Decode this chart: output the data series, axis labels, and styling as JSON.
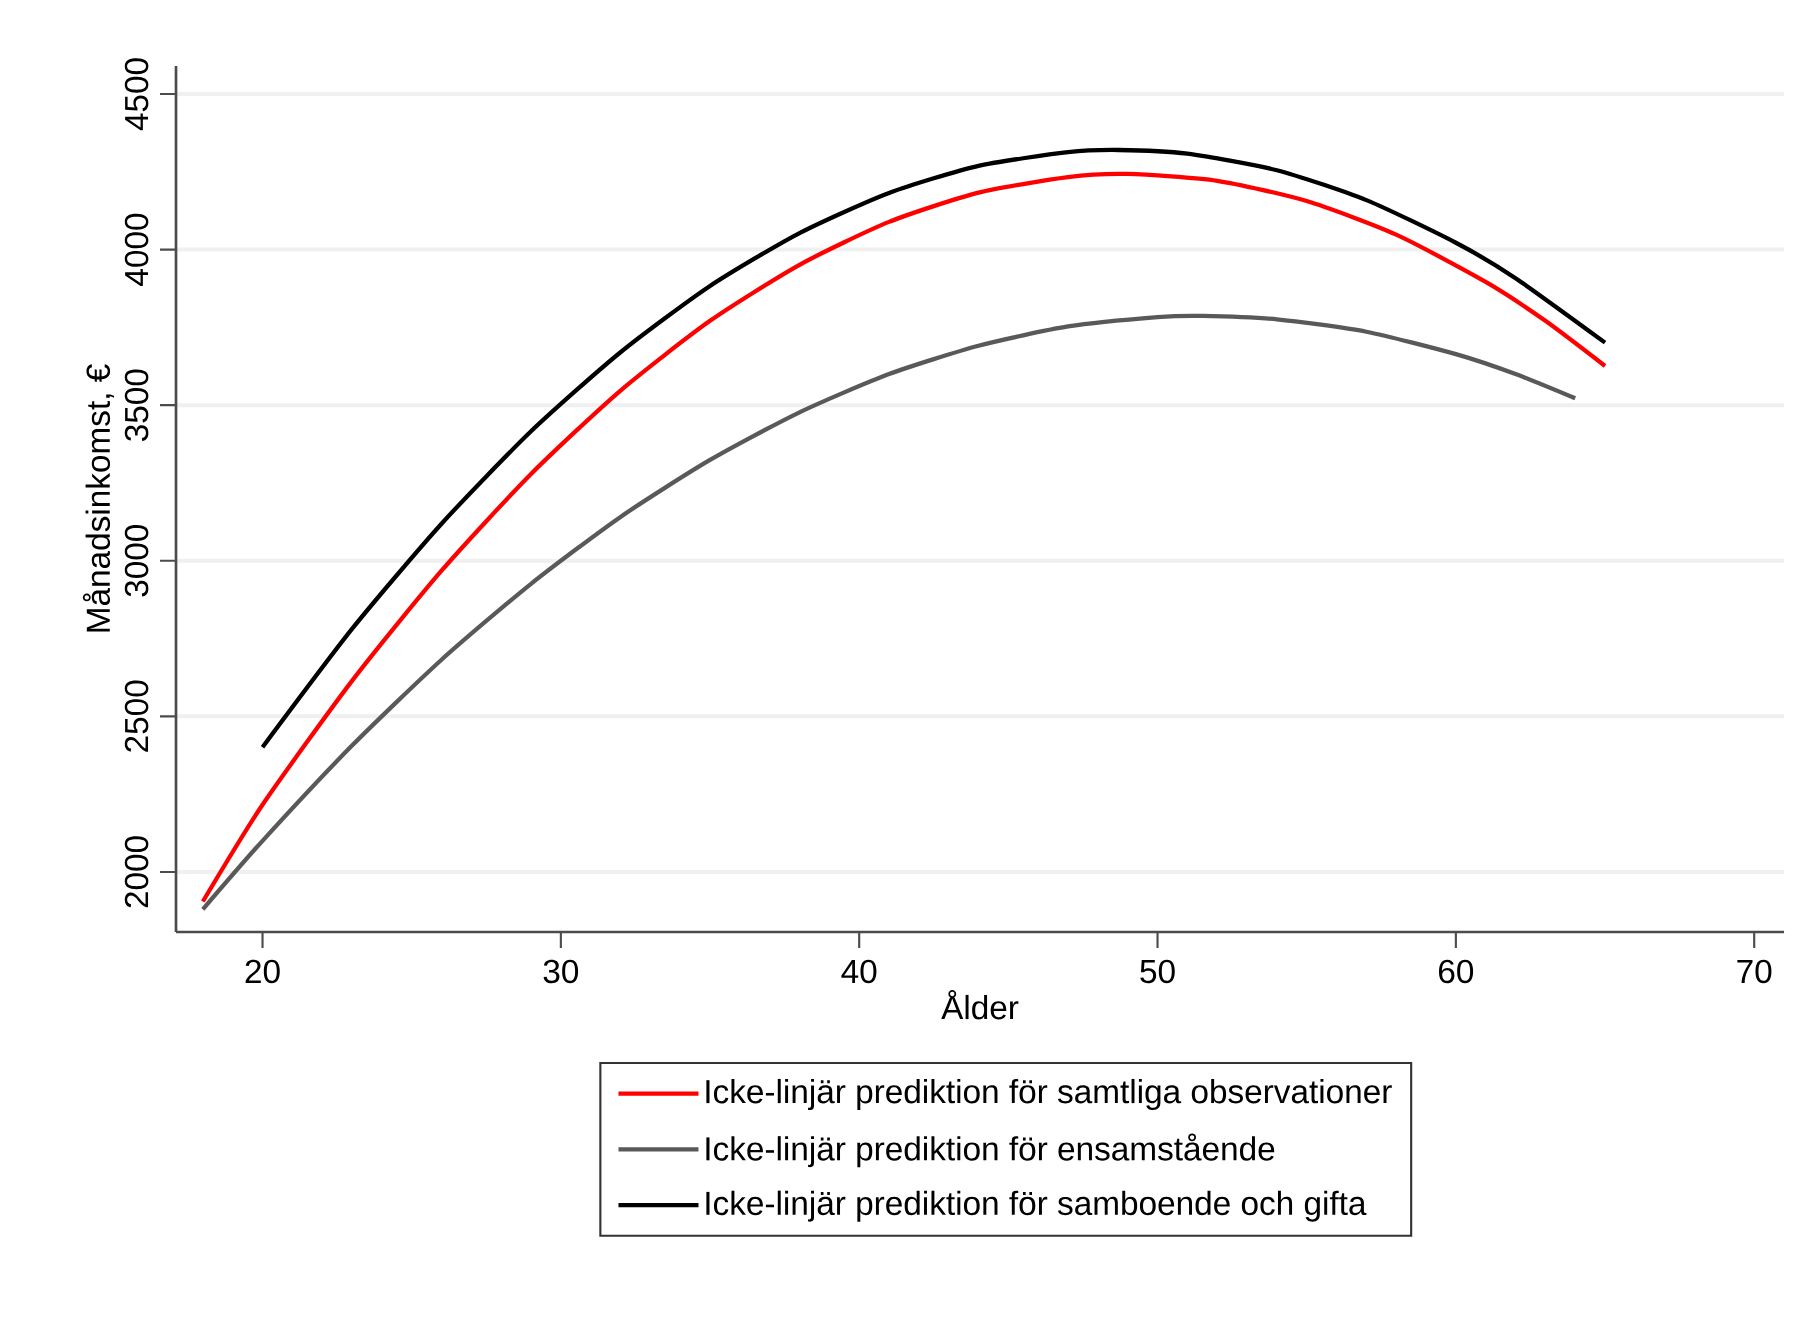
{
  "chart_data": {
    "type": "line",
    "xlabel": "Ålder",
    "ylabel": "Månadsinkomst, €",
    "xlim": [
      17.1,
      71
    ],
    "ylim": [
      1807,
      4590
    ],
    "xticks": [
      20,
      30,
      40,
      50,
      60,
      70
    ],
    "yticks": [
      2000,
      2500,
      3000,
      3500,
      4000,
      4500
    ],
    "grid": "y",
    "legend": "bottom",
    "marker": "none",
    "line_style": "solid",
    "series": [
      {
        "name": "Icke-linjär prediktion för samtliga observationer",
        "color": "#ff0000",
        "x": [
          18,
          20,
          23,
          26,
          29,
          32,
          35,
          38,
          41,
          44,
          47,
          49,
          52,
          55,
          58,
          61,
          63,
          65
        ],
        "values": [
          1905,
          2216,
          2614,
          2968,
          3279,
          3547,
          3771,
          3951,
          4089,
          4183,
          4233,
          4243,
          4221,
          4156,
          4048,
          3896,
          3771,
          3626
        ]
      },
      {
        "name": "Icke-linjär prediktion för ensamstående",
        "color": "#595959",
        "x": [
          18,
          20,
          23,
          26,
          29,
          32,
          35,
          38,
          41,
          44,
          47,
          50,
          51.5,
          54,
          57,
          60,
          62,
          64
        ],
        "values": [
          1880,
          2100,
          2406,
          2682,
          2926,
          3141,
          3324,
          3477,
          3600,
          3691,
          3753,
          3783,
          3787,
          3776,
          3736,
          3664,
          3600,
          3522
        ]
      },
      {
        "name": "Icke-linjär prediktion för samboende och gifta",
        "color": "#000000",
        "x": [
          20,
          23,
          26,
          29,
          32,
          35,
          38,
          41,
          44,
          47,
          48.7,
          51,
          54,
          57,
          60,
          62,
          65
        ],
        "values": [
          2401,
          2781,
          3119,
          3416,
          3670,
          3883,
          4053,
          4182,
          4269,
          4313,
          4320,
          4308,
          4255,
          4159,
          4022,
          3908,
          3701
        ]
      }
    ]
  }
}
